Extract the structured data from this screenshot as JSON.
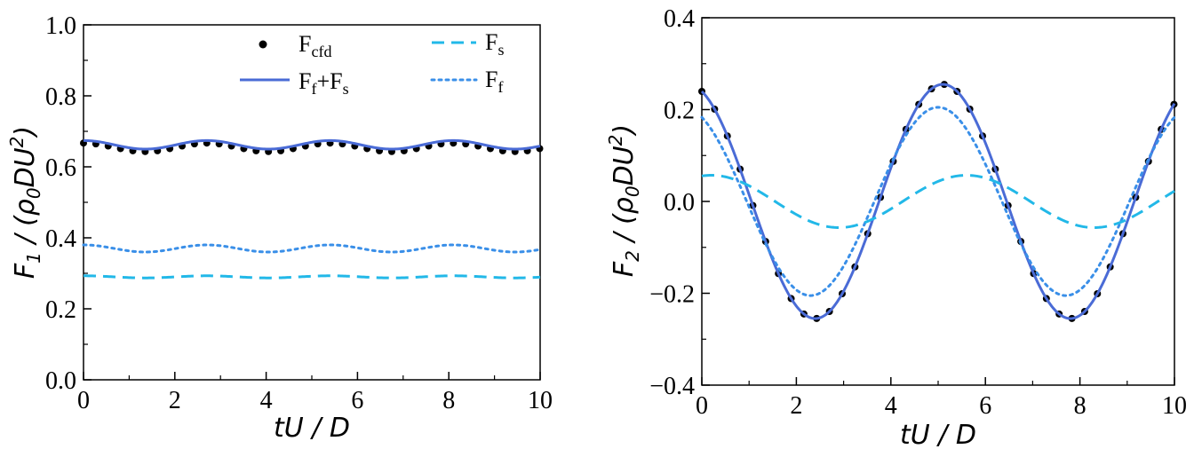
{
  "chart_data": [
    {
      "type": "line",
      "panel": "left",
      "xlabel": "tU / D",
      "ylabel": "F1 / (ρ0DU2)",
      "ylabel_parts": {
        "main": "F",
        "sub": "1",
        "rest": " / (ρ",
        "sub2": "0",
        "mid": "DU",
        "sup": "2",
        "end": ")"
      },
      "xlim": [
        0,
        10
      ],
      "ylim": [
        0.0,
        1.0
      ],
      "xticks": [
        "0",
        "2",
        "4",
        "6",
        "8",
        "10"
      ],
      "xtick_values": [
        0,
        2,
        4,
        6,
        8,
        10
      ],
      "yticks": [
        "0.0",
        "0.2",
        "0.4",
        "0.6",
        "0.8",
        "1.0"
      ],
      "ytick_values": [
        0.0,
        0.2,
        0.4,
        0.6,
        0.8,
        1.0
      ],
      "legend": [
        {
          "key": "cfd",
          "main": "F",
          "sub": "cfd"
        },
        {
          "key": "s",
          "main": "F",
          "sub": "s"
        },
        {
          "key": "sum",
          "main": "F",
          "sub": "f",
          "plus": "+F",
          "sub2": "s"
        },
        {
          "key": "f",
          "main": "F",
          "sub": "f"
        }
      ],
      "series": [
        {
          "name": "Fcfd",
          "style": "dots",
          "color": "#000000",
          "mean": 0.655,
          "amp": 0.012,
          "period": 2.7,
          "phase": 0.0,
          "dx": 0.27
        },
        {
          "name": "Ff+Fs",
          "style": "solid",
          "color": "#4A6BD6",
          "mean": 0.662,
          "amp": 0.012,
          "period": 2.7,
          "phase": 0.0
        },
        {
          "name": "Ff",
          "style": "dotted",
          "color": "#3A8FE8",
          "mean": 0.37,
          "amp": 0.01,
          "period": 2.7,
          "phase": 0.0
        },
        {
          "name": "Fs",
          "style": "dashed",
          "color": "#22B8E8",
          "mean": 0.29,
          "amp": 0.003,
          "period": 2.7,
          "phase": 0.0
        }
      ]
    },
    {
      "type": "line",
      "panel": "right",
      "xlabel": "tU / D",
      "ylabel": "F2 / (ρ0DU2)",
      "ylabel_parts": {
        "main": "F",
        "sub": "2",
        "rest": " / (ρ",
        "sub2": "0",
        "mid": "DU",
        "sup": "2",
        "end": ")"
      },
      "xlim": [
        0,
        10
      ],
      "ylim": [
        -0.4,
        0.4
      ],
      "xticks": [
        "0",
        "2",
        "4",
        "6",
        "8",
        "10"
      ],
      "xtick_values": [
        0,
        2,
        4,
        6,
        8,
        10
      ],
      "yticks": [
        "−0.4",
        "−0.2",
        "0.0",
        "0.2",
        "0.4"
      ],
      "ytick_values": [
        -0.4,
        -0.2,
        0.0,
        0.2,
        0.4
      ],
      "series": [
        {
          "name": "Fcfd",
          "style": "dots",
          "color": "#000000",
          "amp": 0.255,
          "period": 5.4,
          "peak": 5.1,
          "dx": 0.27
        },
        {
          "name": "Ff+Fs",
          "style": "solid",
          "color": "#4A6BD6",
          "amp": 0.255,
          "period": 5.4,
          "peak": 5.1
        },
        {
          "name": "Ff",
          "style": "dotted",
          "color": "#3A8FE8",
          "amp": 0.205,
          "period": 5.4,
          "peak": 5.0
        },
        {
          "name": "Fs",
          "style": "dashed",
          "color": "#22B8E8",
          "amp": 0.057,
          "period": 5.4,
          "peak": 5.6
        }
      ]
    }
  ]
}
